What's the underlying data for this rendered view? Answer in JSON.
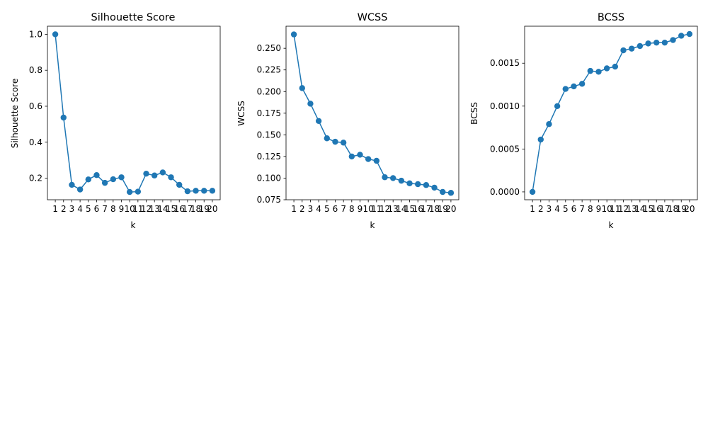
{
  "chart_data": [
    {
      "type": "line",
      "title": "Silhouette Score",
      "xlabel": "k",
      "ylabel": "Silhouette Score",
      "x": [
        1,
        2,
        3,
        4,
        5,
        6,
        7,
        8,
        9,
        10,
        11,
        12,
        13,
        14,
        15,
        16,
        17,
        18,
        19,
        20
      ],
      "ylim": [
        0.08,
        1.045
      ],
      "yticks": [
        "0.2",
        "0.4",
        "0.6",
        "0.8",
        "1.0"
      ],
      "ytick_values": [
        0.2,
        0.4,
        0.6,
        0.8,
        1.0
      ],
      "series": [
        {
          "values": [
            1.0,
            0.537,
            0.163,
            0.137,
            0.193,
            0.217,
            0.174,
            0.194,
            0.205,
            0.123,
            0.125,
            0.225,
            0.215,
            0.232,
            0.205,
            0.163,
            0.127,
            0.13,
            0.13,
            0.13
          ]
        }
      ],
      "color": "#1f77b4",
      "grid": false
    },
    {
      "type": "line",
      "title": "WCSS",
      "xlabel": "k",
      "ylabel": "WCSS",
      "x": [
        1,
        2,
        3,
        4,
        5,
        6,
        7,
        8,
        9,
        10,
        11,
        12,
        13,
        14,
        15,
        16,
        17,
        18,
        19,
        20
      ],
      "ylim": [
        0.075,
        0.2755
      ],
      "yticks": [
        "0.075",
        "0.100",
        "0.125",
        "0.150",
        "0.175",
        "0.200",
        "0.225",
        "0.250"
      ],
      "ytick_values": [
        0.075,
        0.1,
        0.125,
        0.15,
        0.175,
        0.2,
        0.225,
        0.25
      ],
      "series": [
        {
          "values": [
            0.266,
            0.204,
            0.186,
            0.166,
            0.146,
            0.142,
            0.141,
            0.125,
            0.127,
            0.122,
            0.12,
            0.101,
            0.1,
            0.097,
            0.094,
            0.093,
            0.092,
            0.089,
            0.084,
            0.083
          ]
        }
      ],
      "color": "#1f77b4",
      "grid": false
    },
    {
      "type": "line",
      "title": "BCSS",
      "xlabel": "k",
      "ylabel": "BCSS",
      "x": [
        1,
        2,
        3,
        4,
        5,
        6,
        7,
        8,
        9,
        10,
        11,
        12,
        13,
        14,
        15,
        16,
        17,
        18,
        19,
        20
      ],
      "ylim": [
        -9.15e-05,
        0.0019312
      ],
      "yticks": [
        "0.0000",
        "0.0005",
        "0.0010",
        "0.0015"
      ],
      "ytick_values": [
        0.0,
        0.0005,
        0.001,
        0.0015
      ],
      "series": [
        {
          "values": [
            0.0,
            0.00061,
            0.00079,
            0.001,
            0.0012,
            0.00123,
            0.00126,
            0.00141,
            0.0014,
            0.00144,
            0.00146,
            0.00165,
            0.00167,
            0.0017,
            0.00173,
            0.00174,
            0.00174,
            0.00177,
            0.00182,
            0.00184
          ]
        }
      ],
      "color": "#1f77b4",
      "grid": false
    }
  ]
}
